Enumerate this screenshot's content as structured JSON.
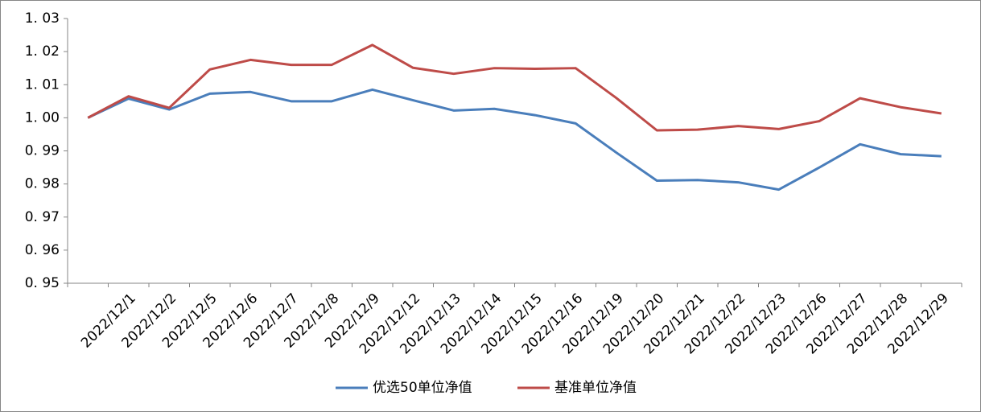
{
  "chart_data": {
    "type": "line",
    "categories": [
      null,
      "2022/12/1",
      "2022/12/2",
      "2022/12/5",
      "2022/12/6",
      "2022/12/7",
      "2022/12/8",
      "2022/12/9",
      "2022/12/12",
      "2022/12/13",
      "2022/12/14",
      "2022/12/15",
      "2022/12/16",
      "2022/12/19",
      "2022/12/20",
      "2022/12/21",
      "2022/12/22",
      "2022/12/23",
      "2022/12/26",
      "2022/12/27",
      "2022/12/28",
      "2022/12/29"
    ],
    "series": [
      {
        "name": "优选50单位净值",
        "color": "#4a7ebb",
        "values": [
          1.0,
          1.0058,
          1.0025,
          1.0073,
          1.0078,
          1.005,
          1.005,
          1.0085,
          1.0053,
          1.0022,
          1.0027,
          1.0008,
          0.9983,
          0.9895,
          0.981,
          0.9812,
          0.9805,
          0.9783,
          0.985,
          0.992,
          0.989,
          0.9884
        ]
      },
      {
        "name": "基准单位净值",
        "color": "#be4b48",
        "values": [
          1.0,
          1.0065,
          1.003,
          1.0146,
          1.0175,
          1.016,
          1.016,
          1.022,
          1.0151,
          1.0133,
          1.015,
          1.0148,
          1.015,
          1.006,
          0.9962,
          0.9964,
          0.9975,
          0.9966,
          0.999,
          1.0059,
          1.0032,
          1.0013
        ]
      }
    ],
    "ylim": [
      0.95,
      1.03
    ],
    "yticks": [
      {
        "value": 0.95,
        "label": "0. 95"
      },
      {
        "value": 0.96,
        "label": "0. 96"
      },
      {
        "value": 0.97,
        "label": "0. 97"
      },
      {
        "value": 0.98,
        "label": "0. 98"
      },
      {
        "value": 0.99,
        "label": "0. 99"
      },
      {
        "value": 1.0,
        "label": "1. 00"
      },
      {
        "value": 1.01,
        "label": "1. 01"
      },
      {
        "value": 1.02,
        "label": "1. 02"
      },
      {
        "value": 1.03,
        "label": "1. 03"
      }
    ],
    "grid": false,
    "legend": "bottom"
  }
}
